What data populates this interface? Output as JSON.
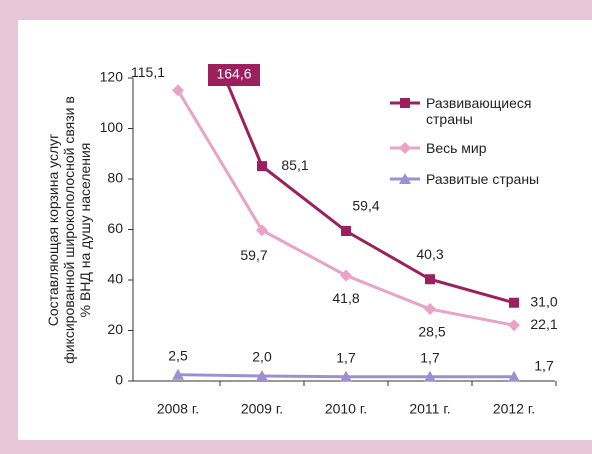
{
  "chart_data": {
    "type": "line",
    "ylabel": [
      "Составляющая корзина услуг",
      "фиксированной широкополосной связи в",
      "% ВНД на душу населения"
    ],
    "categories": [
      "2008 г.",
      "2009 г.",
      "2010 г.",
      "2011 г.",
      "2012 г."
    ],
    "series": [
      {
        "name": "Развивающиеся страны",
        "color": "#9c1f5e",
        "marker": "square",
        "values": [
          164.6,
          85.1,
          59.4,
          40.3,
          31.0
        ],
        "value_labels": [
          "164,6",
          "85,1",
          "59,4",
          "40,3",
          "31,0"
        ]
      },
      {
        "name": "Весь мир",
        "color": "#e8a3c6",
        "marker": "diamond",
        "values": [
          115.1,
          59.7,
          41.8,
          28.5,
          22.1
        ],
        "value_labels": [
          "115,1",
          "59,7",
          "41,8",
          "28,5",
          "22,1"
        ]
      },
      {
        "name": "Развитые страны",
        "color": "#9d90d2",
        "marker": "triangle",
        "values": [
          2.5,
          2.0,
          1.7,
          1.7,
          1.7
        ],
        "value_labels": [
          "2,5",
          "2,0",
          "1,7",
          "1,7",
          "1,7"
        ]
      }
    ],
    "ylim": [
      0,
      120
    ],
    "yticks": [
      0,
      20,
      40,
      60,
      80,
      100,
      120
    ],
    "grid": false,
    "legend": "upper right"
  }
}
